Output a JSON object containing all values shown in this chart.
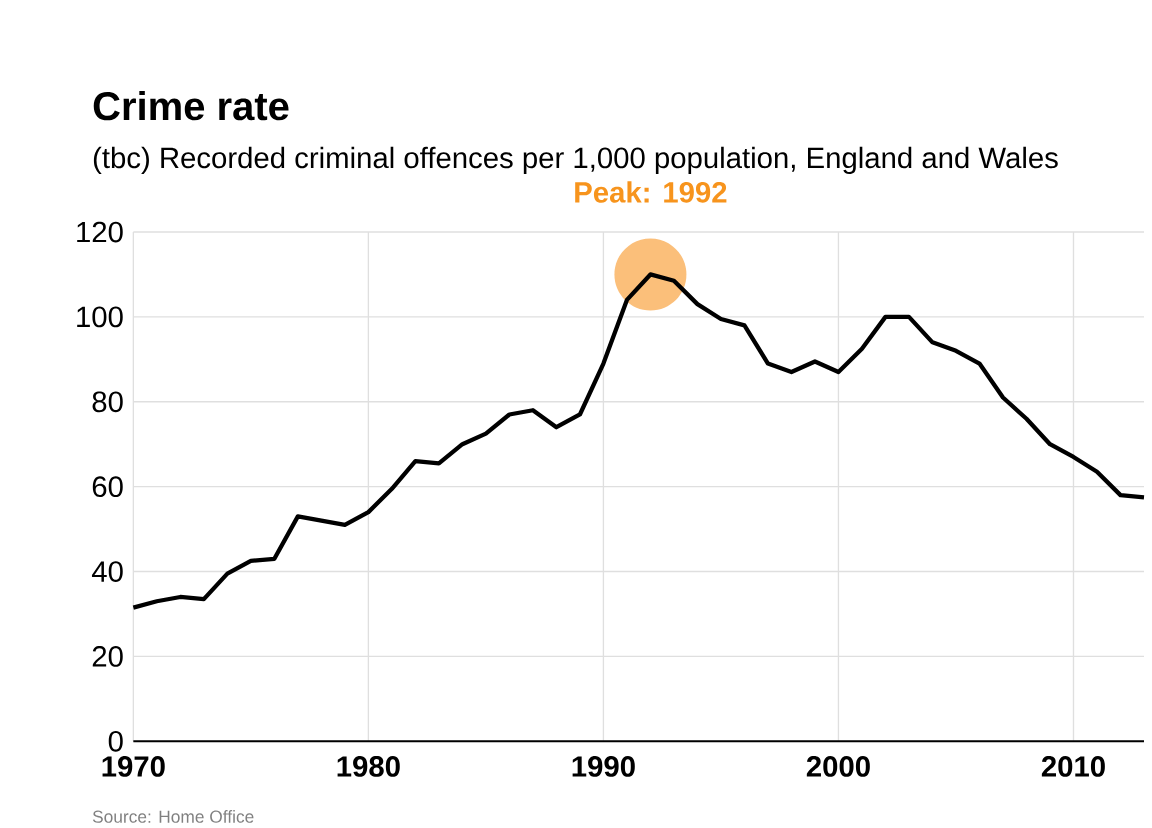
{
  "chart_data": {
    "type": "line",
    "title": "Crime rate",
    "subtitle": "(tbc) Recorded criminal offences per 1,000 population, England and Wales",
    "annotations": [
      "Source: Home Office",
      {
        "text": "Peak: 1992",
        "x": 1992,
        "y": 110
      }
    ],
    "x": [
      1970,
      1971,
      1972,
      1973,
      1974,
      1975,
      1976,
      1977,
      1978,
      1979,
      1980,
      1981,
      1982,
      1983,
      1984,
      1985,
      1986,
      1987,
      1988,
      1989,
      1990,
      1991,
      1992,
      1993,
      1994,
      1995,
      1996,
      1997,
      1998,
      1999,
      2000,
      2001,
      2002,
      2003,
      2004,
      2005,
      2006,
      2007,
      2008,
      2009,
      2010,
      2011,
      2012,
      2013
    ],
    "series": [
      {
        "color": "#000000",
        "values": [
          31.5,
          33,
          34,
          33.5,
          39.5,
          42.5,
          43,
          53,
          52,
          51,
          54,
          59.5,
          66,
          65.5,
          70,
          72.5,
          77,
          78,
          74,
          77,
          89,
          104,
          110,
          108.5,
          103,
          99.5,
          98,
          89,
          87,
          89.5,
          87,
          92.5,
          100,
          100,
          94,
          92,
          89,
          81,
          76,
          70,
          67,
          63.5,
          58,
          57.5
        ]
      }
    ],
    "xlim": [
      1970,
      2013
    ],
    "ylim": [
      0,
      120
    ],
    "xticks": [
      1970,
      1980,
      1990,
      2000,
      2010
    ],
    "yticks": [
      0,
      20,
      40,
      60,
      80,
      100,
      120
    ],
    "grid": true,
    "marker": "none",
    "line_style": "solid"
  }
}
